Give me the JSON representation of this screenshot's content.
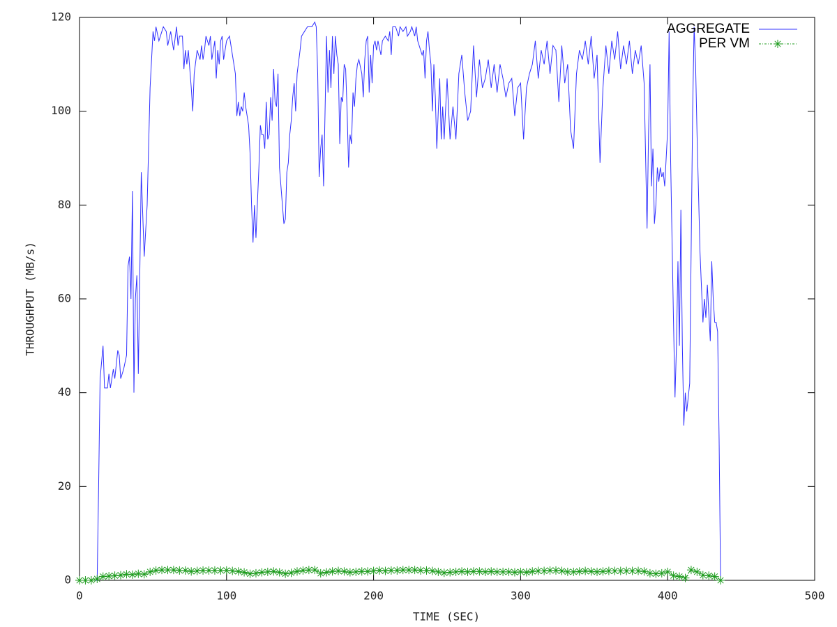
{
  "chart_data": {
    "type": "line",
    "x_label": "TIME (SEC)",
    "y_label": "THROUGHPUT (MB/s)",
    "xlim": [
      0,
      500
    ],
    "xticks": [
      0,
      100,
      200,
      300,
      400,
      500
    ],
    "ylim": [
      0,
      120
    ],
    "yticks": [
      0,
      20,
      40,
      60,
      80,
      100,
      120
    ],
    "legend": "top-right",
    "series": [
      {
        "name": "AGGREGATE",
        "color": "#3030ff",
        "marker": "none",
        "x": [
          0,
          12,
          13,
          14,
          16,
          17,
          19,
          20,
          21,
          23,
          24,
          26,
          27,
          28,
          30,
          32,
          33,
          34,
          35,
          36,
          37,
          38,
          39,
          40,
          42,
          44,
          46,
          48,
          50,
          51,
          52,
          54,
          56,
          57,
          59,
          60,
          62,
          64,
          66,
          67,
          68,
          70,
          71,
          72,
          73,
          74,
          76,
          77,
          78,
          80,
          82,
          83,
          84,
          85,
          86,
          88,
          89,
          90,
          92,
          93,
          94,
          95,
          96,
          97,
          98,
          100,
          102,
          104,
          106,
          107,
          108,
          109,
          110,
          111,
          112,
          113,
          115,
          116,
          117,
          118,
          119,
          120,
          122,
          123,
          124,
          125,
          126,
          127,
          128,
          129,
          130,
          131,
          132,
          133,
          134,
          135,
          136,
          138,
          139,
          140,
          141,
          142,
          143,
          144,
          145,
          146,
          147,
          148,
          150,
          151,
          153,
          155,
          158,
          160,
          161,
          162,
          163,
          164,
          165,
          166,
          167,
          168,
          169,
          170,
          171,
          172,
          173,
          174,
          175,
          176,
          177,
          178,
          179,
          180,
          181,
          182,
          183,
          184,
          185,
          186,
          187,
          188,
          189,
          190,
          192,
          193,
          194,
          195,
          196,
          197,
          198,
          199,
          200,
          201,
          202,
          203,
          205,
          206,
          208,
          210,
          211,
          212,
          213,
          215,
          217,
          218,
          220,
          222,
          223,
          225,
          226,
          228,
          229,
          230,
          231,
          232,
          233,
          234,
          235,
          236,
          237,
          238,
          239,
          240,
          241,
          242,
          243,
          244,
          245,
          246,
          247,
          248,
          250,
          252,
          254,
          256,
          258,
          260,
          262,
          264,
          266,
          268,
          270,
          272,
          274,
          276,
          278,
          280,
          282,
          284,
          286,
          288,
          290,
          292,
          294,
          296,
          298,
          300,
          302,
          304,
          306,
          308,
          310,
          312,
          314,
          316,
          318,
          320,
          322,
          324,
          326,
          328,
          330,
          332,
          334,
          336,
          338,
          340,
          342,
          344,
          346,
          348,
          350,
          352,
          354,
          356,
          358,
          360,
          362,
          364,
          366,
          368,
          370,
          372,
          374,
          376,
          378,
          380,
          382,
          384,
          386,
          387,
          388,
          389,
          390,
          391,
          392,
          393,
          394,
          395,
          396,
          397,
          398,
          400,
          401,
          402,
          404,
          405,
          406,
          407,
          408,
          409,
          410,
          411,
          412,
          413,
          415,
          417,
          418,
          419,
          420,
          422,
          424,
          425,
          426,
          427,
          428,
          429,
          430,
          431,
          432,
          433,
          434,
          435,
          436
        ],
        "values": [
          0,
          0,
          20,
          43,
          50,
          41,
          41,
          44,
          41,
          45,
          43,
          49,
          48,
          43,
          45,
          48,
          67,
          69,
          60,
          83,
          40,
          60,
          65,
          44,
          87,
          69,
          80,
          105,
          117,
          115,
          118,
          115,
          117,
          118,
          117,
          114,
          117,
          113,
          118,
          114,
          116,
          116,
          109,
          113,
          110,
          113,
          105,
          100,
          108,
          113,
          111,
          114,
          111,
          113,
          116,
          114,
          116,
          111,
          115,
          107,
          113,
          110,
          115,
          116,
          111,
          115,
          116,
          112,
          108,
          99,
          102,
          99,
          101,
          100,
          104,
          101,
          97,
          91,
          80,
          72,
          80,
          73,
          88,
          97,
          95,
          95,
          92,
          102,
          94,
          95,
          103,
          98,
          109,
          102,
          101,
          108,
          88,
          80,
          76,
          77,
          87,
          89,
          95,
          98,
          103,
          106,
          100,
          108,
          113,
          116,
          117,
          118,
          118,
          119,
          118,
          108,
          86,
          92,
          95,
          84,
          100,
          116,
          104,
          113,
          105,
          116,
          108,
          116,
          112,
          110,
          93,
          103,
          102,
          110,
          109,
          100,
          88,
          95,
          93,
          104,
          101,
          107,
          110,
          111,
          108,
          103,
          111,
          115,
          116,
          104,
          112,
          106,
          114,
          115,
          113,
          115,
          112,
          115,
          116,
          115,
          117,
          112,
          118,
          118,
          116,
          118,
          117,
          118,
          116,
          117,
          118,
          116,
          118,
          115,
          114,
          113,
          112,
          113,
          107,
          115,
          117,
          113,
          110,
          100,
          110,
          103,
          92,
          100,
          107,
          94,
          101,
          94,
          107,
          94,
          101,
          94,
          108,
          112,
          104,
          98,
          100,
          114,
          103,
          111,
          105,
          107,
          111,
          105,
          110,
          104,
          110,
          107,
          103,
          106,
          107,
          99,
          105,
          106,
          94,
          105,
          108,
          110,
          115,
          107,
          113,
          110,
          115,
          108,
          114,
          113,
          102,
          114,
          106,
          110,
          96,
          92,
          108,
          113,
          111,
          115,
          110,
          116,
          107,
          112,
          89,
          105,
          114,
          108,
          115,
          111,
          117,
          109,
          114,
          110,
          115,
          108,
          113,
          110,
          114,
          106,
          75,
          95,
          110,
          84,
          92,
          76,
          80,
          88,
          85,
          88,
          86,
          87,
          84,
          96,
          117,
          90,
          55,
          39,
          50,
          68,
          50,
          79,
          50,
          33,
          40,
          36,
          42,
          100,
          118,
          110,
          95,
          70,
          55,
          60,
          56,
          63,
          57,
          51,
          68,
          60,
          55,
          55,
          53,
          30,
          0
        ]
      },
      {
        "name": "PER VM",
        "color": "#1a9a1a",
        "marker": "star",
        "x": [
          0,
          4,
          8,
          12,
          16,
          20,
          24,
          28,
          32,
          36,
          40,
          44,
          48,
          52,
          56,
          60,
          64,
          68,
          72,
          76,
          80,
          84,
          88,
          92,
          96,
          100,
          104,
          108,
          112,
          116,
          120,
          124,
          128,
          132,
          136,
          140,
          144,
          148,
          152,
          156,
          160,
          164,
          168,
          172,
          176,
          180,
          184,
          188,
          192,
          196,
          200,
          204,
          208,
          212,
          216,
          220,
          224,
          228,
          232,
          236,
          240,
          244,
          248,
          252,
          256,
          260,
          264,
          268,
          272,
          276,
          280,
          284,
          288,
          292,
          296,
          300,
          304,
          308,
          312,
          316,
          320,
          324,
          328,
          332,
          336,
          340,
          344,
          348,
          352,
          356,
          360,
          364,
          368,
          372,
          376,
          380,
          384,
          388,
          392,
          396,
          400,
          404,
          408,
          412,
          416,
          420,
          424,
          428,
          432,
          436
        ],
        "values": [
          0,
          0,
          0,
          0.3,
          0.8,
          0.9,
          1,
          1.1,
          1.3,
          1.2,
          1.4,
          1.3,
          1.8,
          2.1,
          2.2,
          2.2,
          2.2,
          2.1,
          2.1,
          1.9,
          2,
          2.1,
          2.1,
          2.1,
          2.1,
          2.1,
          2,
          1.9,
          1.7,
          1.4,
          1.5,
          1.7,
          1.8,
          1.9,
          1.7,
          1.4,
          1.6,
          1.9,
          2.1,
          2.2,
          2.2,
          1.5,
          1.7,
          1.9,
          2,
          1.9,
          1.7,
          1.8,
          1.9,
          1.9,
          2,
          2.1,
          2,
          2.1,
          2.1,
          2.2,
          2.2,
          2.2,
          2.1,
          2.1,
          2,
          1.8,
          1.6,
          1.7,
          1.8,
          1.9,
          1.8,
          1.9,
          1.9,
          1.8,
          1.9,
          1.8,
          1.8,
          1.8,
          1.7,
          1.8,
          1.7,
          1.9,
          2,
          2,
          2.1,
          2.1,
          2,
          1.8,
          1.8,
          1.9,
          2,
          1.9,
          1.8,
          1.9,
          2,
          2,
          2,
          2,
          2,
          2,
          1.9,
          1.5,
          1.4,
          1.5,
          1.8,
          1,
          0.8,
          0.5,
          2.2,
          1.8,
          1.1,
          1,
          0.8,
          0
        ]
      }
    ]
  }
}
